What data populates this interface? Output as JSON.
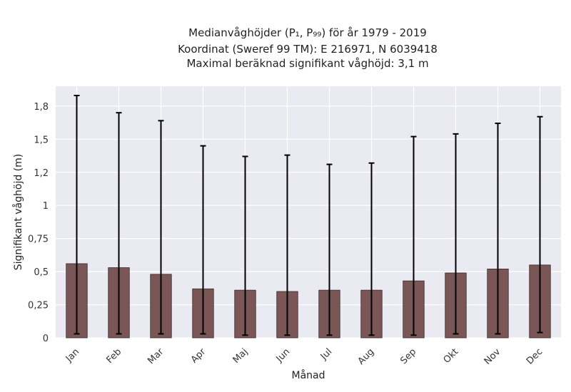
{
  "chart_data": {
    "type": "bar",
    "title_lines": [
      "Medianvåghöjder (P₁, P₉₉) för år 1979 - 2019",
      "Koordinat (Sweref 99 TM): E 216971, N 6039418",
      "Maximal beräknad signifikant våghöjd: 3,1 m"
    ],
    "xlabel": "Månad",
    "ylabel": "Signifikant våghöjd (m)",
    "categories": [
      "Jan",
      "Feb",
      "Mar",
      "Apr",
      "Maj",
      "Jun",
      "Jul",
      "Aug",
      "Sep",
      "Okt",
      "Nov",
      "Dec"
    ],
    "values": [
      0.56,
      0.53,
      0.48,
      0.37,
      0.36,
      0.35,
      0.36,
      0.36,
      0.43,
      0.49,
      0.52,
      0.55
    ],
    "error_low": [
      0.03,
      0.03,
      0.03,
      0.03,
      0.02,
      0.02,
      0.02,
      0.02,
      0.02,
      0.03,
      0.03,
      0.04
    ],
    "error_high": [
      1.83,
      1.7,
      1.64,
      1.45,
      1.37,
      1.38,
      1.31,
      1.32,
      1.52,
      1.54,
      1.62,
      1.67
    ],
    "ylim": [
      0,
      1.9
    ],
    "yticks": [
      0,
      0.25,
      0.5,
      0.75,
      1,
      1.25,
      1.5,
      1.75
    ],
    "ytick_labels": [
      "0",
      "0,25",
      "0,5",
      "0,75",
      "1",
      "1,2",
      "1,5",
      "1,8"
    ],
    "grid": true,
    "colors": {
      "bar": "#7a5656",
      "bar_edge": "#3a2a2a",
      "plot_bg": "#eaeaf2",
      "grid": "#ffffff",
      "error": "#000000"
    }
  }
}
